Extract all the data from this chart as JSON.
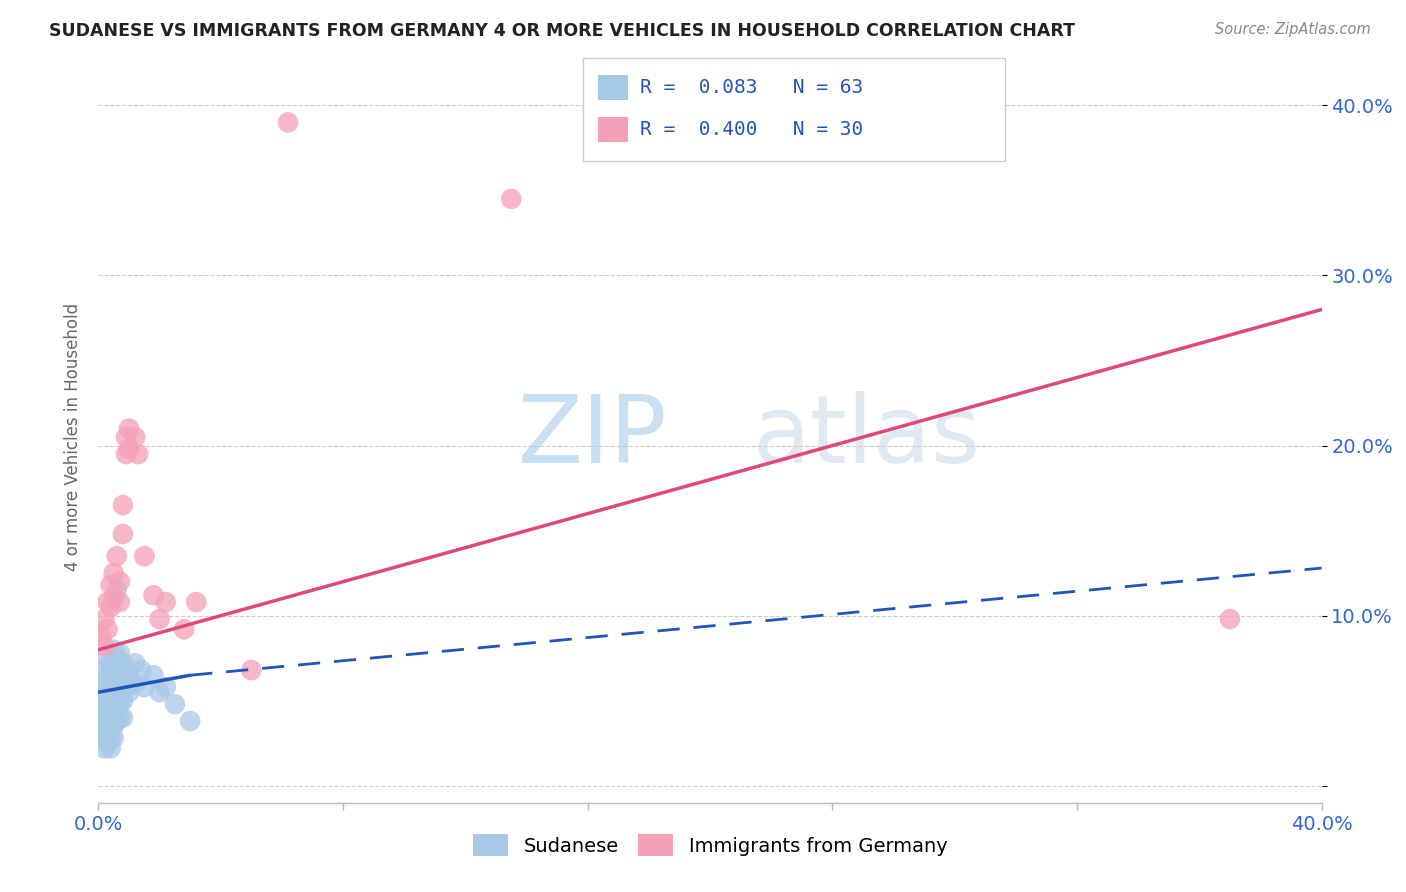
{
  "title": "SUDANESE VS IMMIGRANTS FROM GERMANY 4 OR MORE VEHICLES IN HOUSEHOLD CORRELATION CHART",
  "source": "Source: ZipAtlas.com",
  "ylabel": "4 or more Vehicles in Household",
  "xlim": [
    0.0,
    0.4
  ],
  "ylim": [
    -0.01,
    0.42
  ],
  "yticks": [
    0.0,
    0.1,
    0.2,
    0.3,
    0.4
  ],
  "ytick_labels": [
    "",
    "10.0%",
    "20.0%",
    "30.0%",
    "40.0%"
  ],
  "xticks": [
    0.0,
    0.08,
    0.16,
    0.24,
    0.32,
    0.4
  ],
  "xtick_labels": [
    "0.0%",
    "",
    "",
    "",
    "",
    "40.0%"
  ],
  "sudanese_R": 0.083,
  "sudanese_N": 63,
  "germany_R": 0.4,
  "germany_N": 30,
  "sudanese_color": "#a8c8e8",
  "germany_color": "#f4a0b8",
  "sudanese_line_color": "#2255bb",
  "germany_line_color": "#e04878",
  "watermark_zip": "ZIP",
  "watermark_atlas": "atlas",
  "sudanese_points": [
    [
      0.001,
      0.055
    ],
    [
      0.001,
      0.048
    ],
    [
      0.001,
      0.042
    ],
    [
      0.001,
      0.038
    ],
    [
      0.002,
      0.068
    ],
    [
      0.002,
      0.058
    ],
    [
      0.002,
      0.052
    ],
    [
      0.002,
      0.045
    ],
    [
      0.002,
      0.038
    ],
    [
      0.002,
      0.032
    ],
    [
      0.002,
      0.028
    ],
    [
      0.002,
      0.022
    ],
    [
      0.003,
      0.075
    ],
    [
      0.003,
      0.065
    ],
    [
      0.003,
      0.058
    ],
    [
      0.003,
      0.052
    ],
    [
      0.003,
      0.045
    ],
    [
      0.003,
      0.038
    ],
    [
      0.003,
      0.032
    ],
    [
      0.003,
      0.025
    ],
    [
      0.004,
      0.072
    ],
    [
      0.004,
      0.062
    ],
    [
      0.004,
      0.055
    ],
    [
      0.004,
      0.048
    ],
    [
      0.004,
      0.042
    ],
    [
      0.004,
      0.035
    ],
    [
      0.004,
      0.028
    ],
    [
      0.004,
      0.022
    ],
    [
      0.005,
      0.08
    ],
    [
      0.005,
      0.068
    ],
    [
      0.005,
      0.058
    ],
    [
      0.005,
      0.05
    ],
    [
      0.005,
      0.042
    ],
    [
      0.005,
      0.035
    ],
    [
      0.005,
      0.028
    ],
    [
      0.006,
      0.115
    ],
    [
      0.006,
      0.075
    ],
    [
      0.006,
      0.062
    ],
    [
      0.006,
      0.052
    ],
    [
      0.006,
      0.045
    ],
    [
      0.006,
      0.038
    ],
    [
      0.007,
      0.078
    ],
    [
      0.007,
      0.065
    ],
    [
      0.007,
      0.055
    ],
    [
      0.007,
      0.048
    ],
    [
      0.007,
      0.04
    ],
    [
      0.008,
      0.072
    ],
    [
      0.008,
      0.06
    ],
    [
      0.008,
      0.05
    ],
    [
      0.008,
      0.04
    ],
    [
      0.009,
      0.068
    ],
    [
      0.009,
      0.058
    ],
    [
      0.01,
      0.065
    ],
    [
      0.01,
      0.055
    ],
    [
      0.012,
      0.072
    ],
    [
      0.012,
      0.06
    ],
    [
      0.014,
      0.068
    ],
    [
      0.015,
      0.058
    ],
    [
      0.018,
      0.065
    ],
    [
      0.02,
      0.055
    ],
    [
      0.022,
      0.058
    ],
    [
      0.025,
      0.048
    ],
    [
      0.03,
      0.038
    ]
  ],
  "germany_points": [
    [
      0.001,
      0.088
    ],
    [
      0.002,
      0.098
    ],
    [
      0.002,
      0.082
    ],
    [
      0.003,
      0.108
    ],
    [
      0.003,
      0.092
    ],
    [
      0.004,
      0.118
    ],
    [
      0.004,
      0.105
    ],
    [
      0.005,
      0.125
    ],
    [
      0.005,
      0.11
    ],
    [
      0.006,
      0.135
    ],
    [
      0.007,
      0.12
    ],
    [
      0.007,
      0.108
    ],
    [
      0.008,
      0.165
    ],
    [
      0.008,
      0.148
    ],
    [
      0.009,
      0.205
    ],
    [
      0.009,
      0.195
    ],
    [
      0.01,
      0.21
    ],
    [
      0.01,
      0.198
    ],
    [
      0.012,
      0.205
    ],
    [
      0.013,
      0.195
    ],
    [
      0.015,
      0.135
    ],
    [
      0.018,
      0.112
    ],
    [
      0.02,
      0.098
    ],
    [
      0.022,
      0.108
    ],
    [
      0.028,
      0.092
    ],
    [
      0.032,
      0.108
    ],
    [
      0.05,
      0.068
    ],
    [
      0.135,
      0.345
    ],
    [
      0.37,
      0.098
    ],
    [
      0.062,
      0.39
    ]
  ],
  "sudanese_line": {
    "x0": 0.0,
    "y0": 0.055,
    "x1": 0.03,
    "y1": 0.065,
    "x_dash_end": 0.4,
    "y_dash_end": 0.128
  },
  "germany_line": {
    "x0": 0.0,
    "y0": 0.08,
    "x1": 0.4,
    "y1": 0.28
  }
}
